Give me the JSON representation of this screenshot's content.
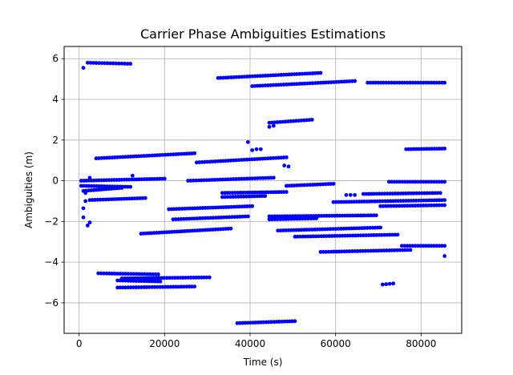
{
  "chart_data": {
    "type": "scatter",
    "title": "Carrier Phase Ambiguities Estimations",
    "xlabel": "Time (s)",
    "ylabel": "Ambiguities (m)",
    "xlim": [
      -3500,
      89500
    ],
    "ylim": [
      -7.5,
      6.6
    ],
    "xticks": [
      0,
      20000,
      40000,
      60000,
      80000
    ],
    "xtick_labels": [
      "0",
      "20000",
      "40000",
      "60000",
      "80000"
    ],
    "yticks": [
      -6,
      -4,
      -2,
      0,
      2,
      4,
      6
    ],
    "ytick_labels": [
      "−6",
      "−4",
      "−2",
      "0",
      "2",
      "4",
      "6"
    ],
    "grid": true,
    "marker_color": "#0000ff",
    "marker": "circle",
    "segments": [
      {
        "x0": 2000,
        "x1": 12000,
        "y0": 5.8,
        "y1": 5.75,
        "n": 16
      },
      {
        "x0": 32500,
        "x1": 56500,
        "y0": 5.05,
        "y1": 5.3,
        "n": 40
      },
      {
        "x0": 40500,
        "x1": 64500,
        "y0": 4.65,
        "y1": 4.9,
        "n": 40
      },
      {
        "x0": 67500,
        "x1": 85500,
        "y0": 4.82,
        "y1": 4.82,
        "n": 30
      },
      {
        "x0": 44500,
        "x1": 54500,
        "y0": 2.85,
        "y1": 3.0,
        "n": 17
      },
      {
        "x0": 4000,
        "x1": 27000,
        "y0": 1.1,
        "y1": 1.35,
        "n": 38
      },
      {
        "x0": 27500,
        "x1": 48500,
        "y0": 0.9,
        "y1": 1.15,
        "n": 35
      },
      {
        "x0": 76500,
        "x1": 85500,
        "y0": 1.55,
        "y1": 1.58,
        "n": 16
      },
      {
        "x0": 500,
        "x1": 20000,
        "y0": 0.0,
        "y1": 0.1,
        "n": 34
      },
      {
        "x0": 25500,
        "x1": 45500,
        "y0": 0.0,
        "y1": 0.15,
        "n": 33
      },
      {
        "x0": 500,
        "x1": 12000,
        "y0": -0.25,
        "y1": -0.3,
        "n": 20
      },
      {
        "x0": 1000,
        "x1": 10000,
        "y0": -0.5,
        "y1": -0.35,
        "n": 16
      },
      {
        "x0": 2500,
        "x1": 15500,
        "y0": -0.95,
        "y1": -0.85,
        "n": 22
      },
      {
        "x0": 33500,
        "x1": 48500,
        "y0": -0.6,
        "y1": -0.55,
        "n": 26
      },
      {
        "x0": 33500,
        "x1": 43500,
        "y0": -0.8,
        "y1": -0.75,
        "n": 17
      },
      {
        "x0": 48500,
        "x1": 59500,
        "y0": -0.25,
        "y1": -0.15,
        "n": 19
      },
      {
        "x0": 72500,
        "x1": 85500,
        "y0": -0.05,
        "y1": -0.05,
        "n": 22
      },
      {
        "x0": 66500,
        "x1": 84500,
        "y0": -0.65,
        "y1": -0.6,
        "n": 30
      },
      {
        "x0": 59500,
        "x1": 85500,
        "y0": -1.05,
        "y1": -0.95,
        "n": 44
      },
      {
        "x0": 70500,
        "x1": 85500,
        "y0": -1.25,
        "y1": -1.2,
        "n": 25
      },
      {
        "x0": 21000,
        "x1": 40500,
        "y0": -1.4,
        "y1": -1.25,
        "n": 33
      },
      {
        "x0": 22000,
        "x1": 39500,
        "y0": -1.9,
        "y1": -1.75,
        "n": 29
      },
      {
        "x0": 44500,
        "x1": 69500,
        "y0": -1.75,
        "y1": -1.7,
        "n": 42
      },
      {
        "x0": 44500,
        "x1": 55500,
        "y0": -1.9,
        "y1": -1.85,
        "n": 18
      },
      {
        "x0": 14500,
        "x1": 35500,
        "y0": -2.6,
        "y1": -2.35,
        "n": 36
      },
      {
        "x0": 46500,
        "x1": 70500,
        "y0": -2.45,
        "y1": -2.3,
        "n": 40
      },
      {
        "x0": 50500,
        "x1": 74500,
        "y0": -2.75,
        "y1": -2.65,
        "n": 40
      },
      {
        "x0": 56500,
        "x1": 77500,
        "y0": -3.5,
        "y1": -3.4,
        "n": 35
      },
      {
        "x0": 75500,
        "x1": 85500,
        "y0": -3.2,
        "y1": -3.2,
        "n": 17
      },
      {
        "x0": 4500,
        "x1": 18500,
        "y0": -4.55,
        "y1": -4.6,
        "n": 23
      },
      {
        "x0": 10000,
        "x1": 30500,
        "y0": -4.8,
        "y1": -4.75,
        "n": 34
      },
      {
        "x0": 9000,
        "x1": 19000,
        "y0": -4.9,
        "y1": -4.95,
        "n": 17
      },
      {
        "x0": 9000,
        "x1": 27000,
        "y0": -5.25,
        "y1": -5.2,
        "n": 30
      },
      {
        "x0": 37000,
        "x1": 50500,
        "y0": -7.0,
        "y1": -6.9,
        "n": 23
      },
      {
        "x0": 71000,
        "x1": 73500,
        "y0": -5.1,
        "y1": -5.05,
        "n": 4
      }
    ],
    "points": [
      [
        1000,
        5.55
      ],
      [
        1000,
        -1.35
      ],
      [
        1000,
        -1.8
      ],
      [
        2000,
        -2.2
      ],
      [
        2500,
        -2.05
      ],
      [
        2500,
        0.15
      ],
      [
        1500,
        -0.6
      ],
      [
        1500,
        -1.0
      ],
      [
        12500,
        0.25
      ],
      [
        39500,
        1.9
      ],
      [
        40500,
        1.5
      ],
      [
        41500,
        1.55
      ],
      [
        42500,
        1.55
      ],
      [
        44500,
        2.65
      ],
      [
        45500,
        2.7
      ],
      [
        48000,
        0.75
      ],
      [
        49000,
        0.7
      ],
      [
        62500,
        -0.7
      ],
      [
        63500,
        -0.7
      ],
      [
        64500,
        -0.7
      ],
      [
        85500,
        -3.7
      ]
    ]
  }
}
